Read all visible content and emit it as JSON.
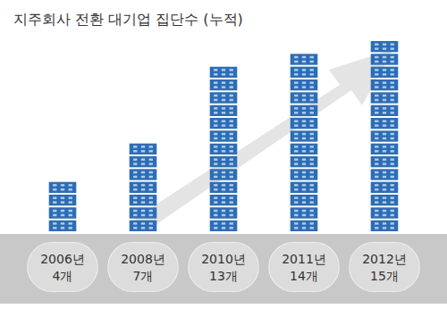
{
  "chart_data": {
    "type": "pictorial_bar",
    "title": "지주회사 전환 대기업 집단수 (누적)",
    "categories": [
      "2006년",
      "2008년",
      "2010년",
      "2011년",
      "2012년"
    ],
    "values": [
      4,
      7,
      13,
      14,
      15
    ],
    "value_labels": [
      "4개",
      "7개",
      "13개",
      "14개",
      "15개"
    ],
    "color": "#2e6db4",
    "ylim": [
      0,
      15
    ],
    "grid": false,
    "data_labels": true,
    "tick_labels": "x"
  }
}
